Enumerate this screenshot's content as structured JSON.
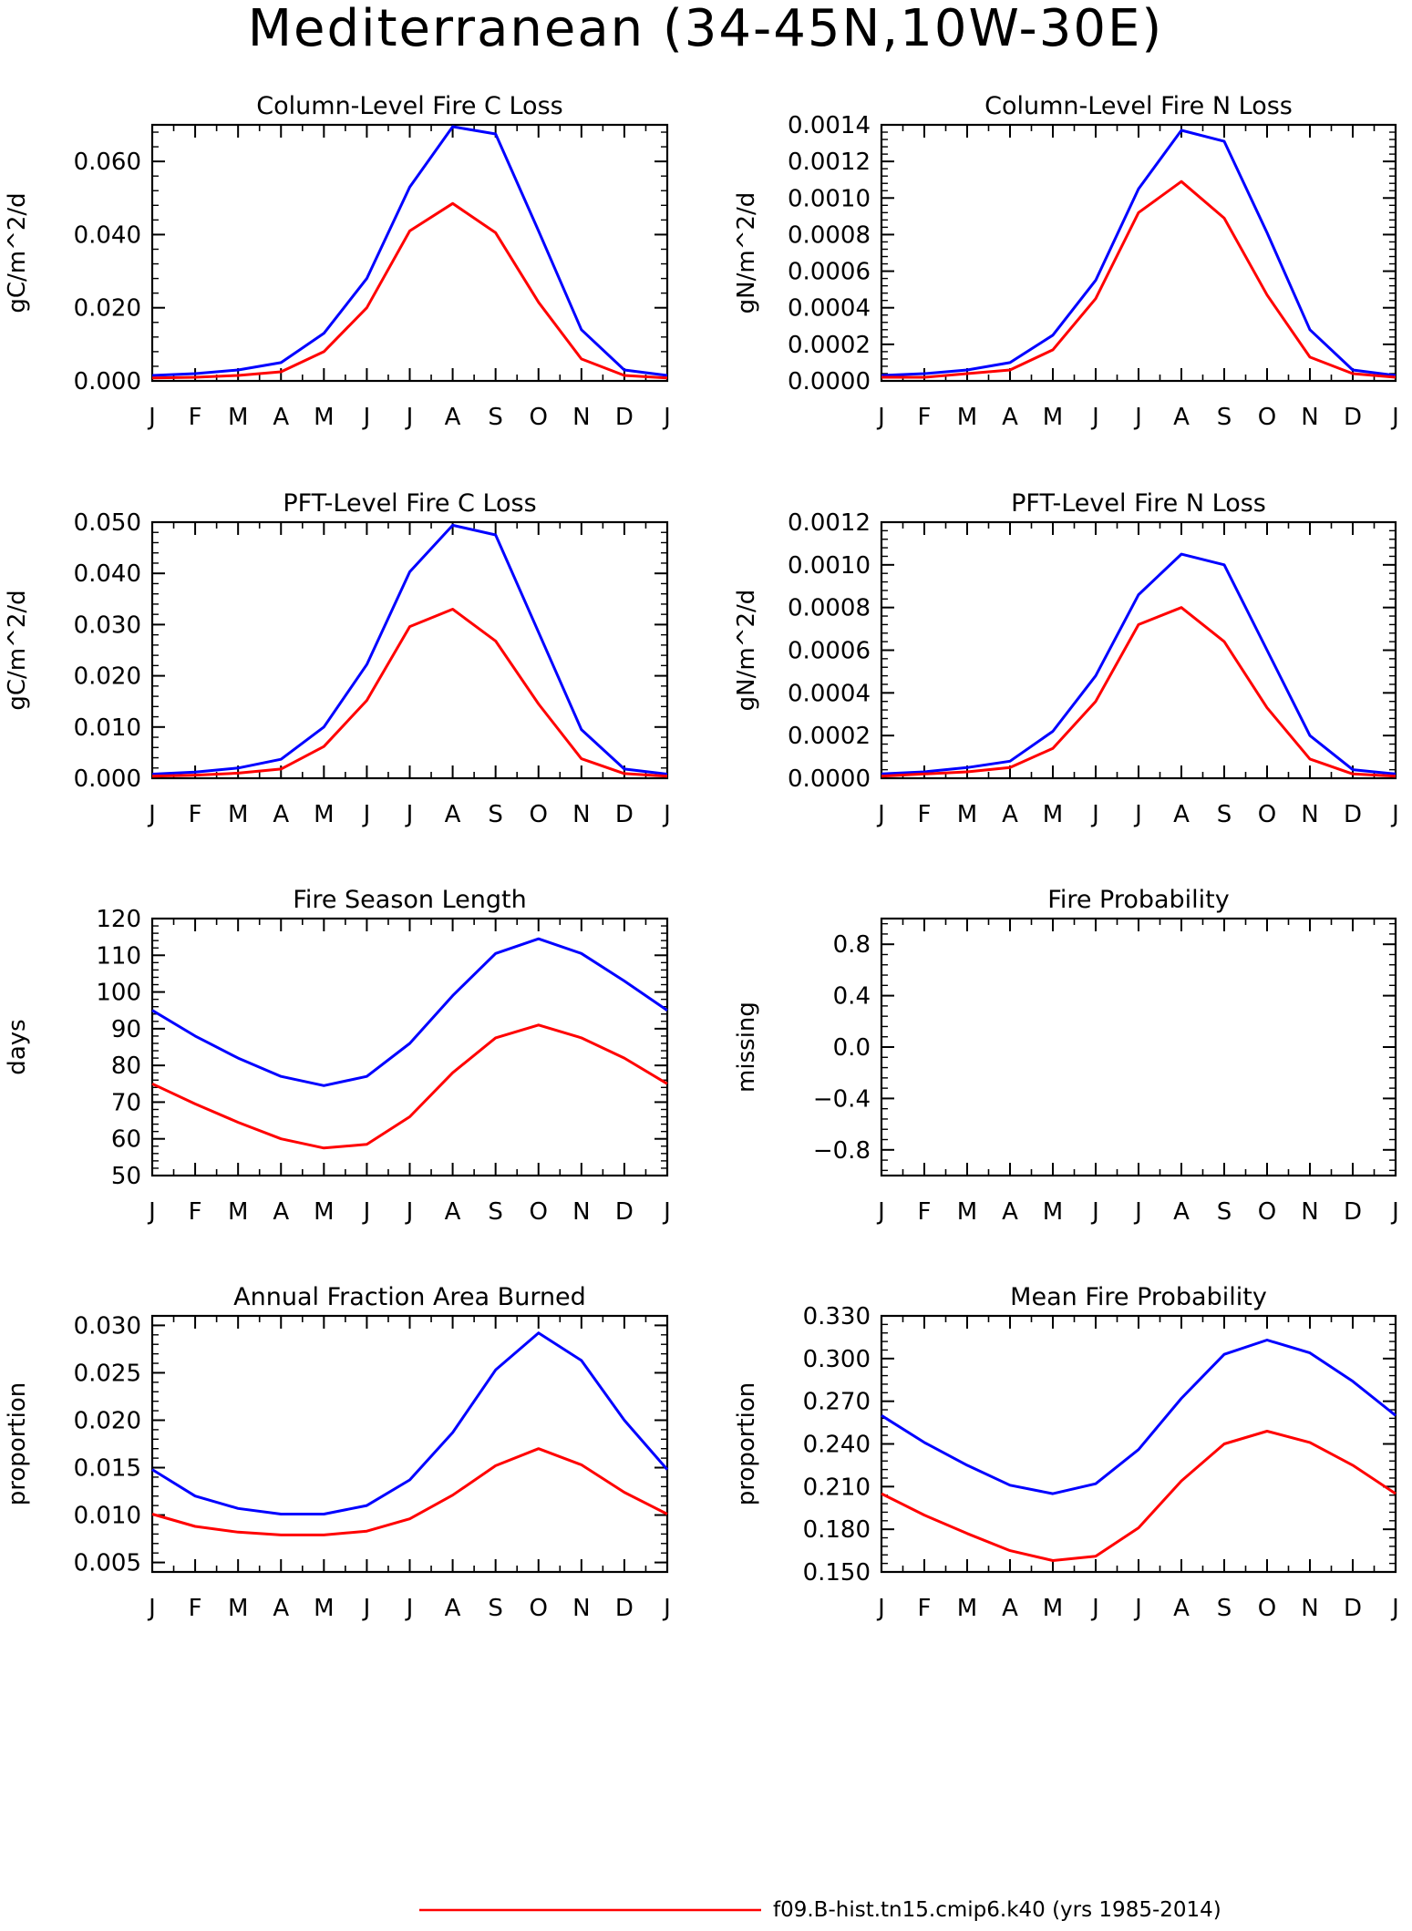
{
  "title": "Mediterranean (34-45N,10W-30E)",
  "colors": {
    "blue": "#0000ff",
    "red": "#ff0000",
    "axis": "#000000"
  },
  "months": [
    "J",
    "F",
    "M",
    "A",
    "M",
    "J",
    "J",
    "A",
    "S",
    "O",
    "N",
    "D",
    "J"
  ],
  "legend": [
    {
      "label": "f09.B-hist.tn15.cmip6.k40 (yrs 1985-2014)",
      "color": "#ff0000"
    }
  ],
  "chart_data": [
    {
      "type": "line",
      "title": "Column-Level Fire C Loss",
      "ylabel": "gC/m^2/d",
      "ylim": [
        0,
        0.07
      ],
      "yticks": [
        0.0,
        0.02,
        0.04,
        0.06
      ],
      "ytick_labels": [
        "0.000",
        "0.020",
        "0.040",
        "0.060"
      ],
      "series": [
        {
          "color": "#0000ff",
          "values": [
            0.0015,
            0.002,
            0.003,
            0.005,
            0.013,
            0.028,
            0.053,
            0.0695,
            0.0675,
            0.041,
            0.014,
            0.003,
            0.0015
          ]
        },
        {
          "color": "#ff0000",
          "values": [
            0.0008,
            0.001,
            0.0015,
            0.0025,
            0.008,
            0.02,
            0.041,
            0.0485,
            0.0405,
            0.0215,
            0.006,
            0.0015,
            0.0008
          ]
        }
      ]
    },
    {
      "type": "line",
      "title": "Column-Level Fire N Loss",
      "ylabel": "gN/m^2/d",
      "ylim": [
        0,
        0.0014
      ],
      "yticks": [
        0.0,
        0.0002,
        0.0004,
        0.0006,
        0.0008,
        0.001,
        0.0012,
        0.0014
      ],
      "ytick_labels": [
        "0.0000",
        "0.0002",
        "0.0004",
        "0.0006",
        "0.0008",
        "0.0010",
        "0.0012",
        "0.0014"
      ],
      "series": [
        {
          "color": "#0000ff",
          "values": [
            3e-05,
            4e-05,
            6e-05,
            0.0001,
            0.00025,
            0.00055,
            0.00105,
            0.00137,
            0.00131,
            0.00081,
            0.00028,
            6e-05,
            3e-05
          ]
        },
        {
          "color": "#ff0000",
          "values": [
            2e-05,
            2e-05,
            4e-05,
            6e-05,
            0.00017,
            0.00045,
            0.00092,
            0.00109,
            0.00089,
            0.00047,
            0.00013,
            4e-05,
            2e-05
          ]
        }
      ]
    },
    {
      "type": "line",
      "title": "PFT-Level Fire C Loss",
      "ylabel": "gC/m^2/d",
      "ylim": [
        0,
        0.05
      ],
      "yticks": [
        0.0,
        0.01,
        0.02,
        0.03,
        0.04,
        0.05
      ],
      "ytick_labels": [
        "0.000",
        "0.010",
        "0.020",
        "0.030",
        "0.040",
        "0.050"
      ],
      "series": [
        {
          "color": "#0000ff",
          "values": [
            0.0008,
            0.0012,
            0.002,
            0.0037,
            0.01,
            0.0222,
            0.0403,
            0.0494,
            0.0475,
            0.0285,
            0.0095,
            0.0018,
            0.0008
          ]
        },
        {
          "color": "#ff0000",
          "values": [
            0.0004,
            0.0006,
            0.001,
            0.0018,
            0.0062,
            0.0152,
            0.0296,
            0.033,
            0.0268,
            0.0145,
            0.0038,
            0.0009,
            0.0004
          ]
        }
      ]
    },
    {
      "type": "line",
      "title": "PFT-Level Fire N Loss",
      "ylabel": "gN/m^2/d",
      "ylim": [
        0,
        0.0012
      ],
      "yticks": [
        0.0,
        0.0002,
        0.0004,
        0.0006,
        0.0008,
        0.001,
        0.0012
      ],
      "ytick_labels": [
        "0.0000",
        "0.0002",
        "0.0004",
        "0.0006",
        "0.0008",
        "0.0010",
        "0.0012"
      ],
      "series": [
        {
          "color": "#0000ff",
          "values": [
            2e-05,
            3e-05,
            5e-05,
            8e-05,
            0.00022,
            0.00048,
            0.00086,
            0.00105,
            0.001,
            0.0006,
            0.0002,
            4e-05,
            2e-05
          ]
        },
        {
          "color": "#ff0000",
          "values": [
            1e-05,
            2e-05,
            3e-05,
            5e-05,
            0.00014,
            0.00036,
            0.00072,
            0.0008,
            0.00064,
            0.00033,
            9e-05,
            2e-05,
            1e-05
          ]
        }
      ]
    },
    {
      "type": "line",
      "title": "Fire Season Length",
      "ylabel": "days",
      "ylim": [
        50,
        120
      ],
      "yticks": [
        50,
        60,
        70,
        80,
        90,
        100,
        110,
        120
      ],
      "ytick_labels": [
        "50",
        "60",
        "70",
        "80",
        "90",
        "100",
        "110",
        "120"
      ],
      "series": [
        {
          "color": "#0000ff",
          "values": [
            95,
            88,
            82,
            77,
            74.5,
            77,
            86,
            99,
            110.5,
            114.5,
            110.5,
            103,
            95
          ]
        },
        {
          "color": "#ff0000",
          "values": [
            75,
            69.5,
            64.5,
            60,
            57.5,
            58.5,
            66,
            78,
            87.5,
            91,
            87.5,
            82,
            75
          ]
        }
      ]
    },
    {
      "type": "line",
      "title": "Fire Probability",
      "ylabel": "missing",
      "ylim": [
        -1,
        1
      ],
      "yticks": [
        -0.8,
        -0.4,
        0.0,
        0.4,
        0.8
      ],
      "ytick_labels": [
        "−0.8",
        "−0.4",
        "0.0",
        "0.4",
        "0.8"
      ],
      "series": []
    },
    {
      "type": "line",
      "title": "Annual Fraction Area Burned",
      "ylabel": "proportion",
      "ylim": [
        0.004,
        0.031
      ],
      "yticks": [
        0.005,
        0.01,
        0.015,
        0.02,
        0.025,
        0.03
      ],
      "ytick_labels": [
        "0.005",
        "0.010",
        "0.015",
        "0.020",
        "0.025",
        "0.030"
      ],
      "series": [
        {
          "color": "#0000ff",
          "values": [
            0.0148,
            0.012,
            0.0107,
            0.0101,
            0.0101,
            0.011,
            0.0137,
            0.0187,
            0.0253,
            0.0292,
            0.0263,
            0.02,
            0.0148
          ]
        },
        {
          "color": "#ff0000",
          "values": [
            0.0101,
            0.0088,
            0.0082,
            0.0079,
            0.0079,
            0.0083,
            0.0096,
            0.0121,
            0.0152,
            0.017,
            0.0153,
            0.0124,
            0.0101
          ]
        }
      ]
    },
    {
      "type": "line",
      "title": "Mean Fire Probability",
      "ylabel": "proportion",
      "ylim": [
        0.15,
        0.33
      ],
      "yticks": [
        0.15,
        0.18,
        0.21,
        0.24,
        0.27,
        0.3,
        0.33
      ],
      "ytick_labels": [
        "0.150",
        "0.180",
        "0.210",
        "0.240",
        "0.270",
        "0.300",
        "0.330"
      ],
      "series": [
        {
          "color": "#0000ff",
          "values": [
            0.26,
            0.241,
            0.225,
            0.211,
            0.205,
            0.212,
            0.236,
            0.272,
            0.303,
            0.313,
            0.304,
            0.284,
            0.26
          ]
        },
        {
          "color": "#ff0000",
          "values": [
            0.205,
            0.19,
            0.177,
            0.165,
            0.158,
            0.161,
            0.181,
            0.214,
            0.24,
            0.249,
            0.241,
            0.225,
            0.205
          ]
        }
      ]
    }
  ]
}
